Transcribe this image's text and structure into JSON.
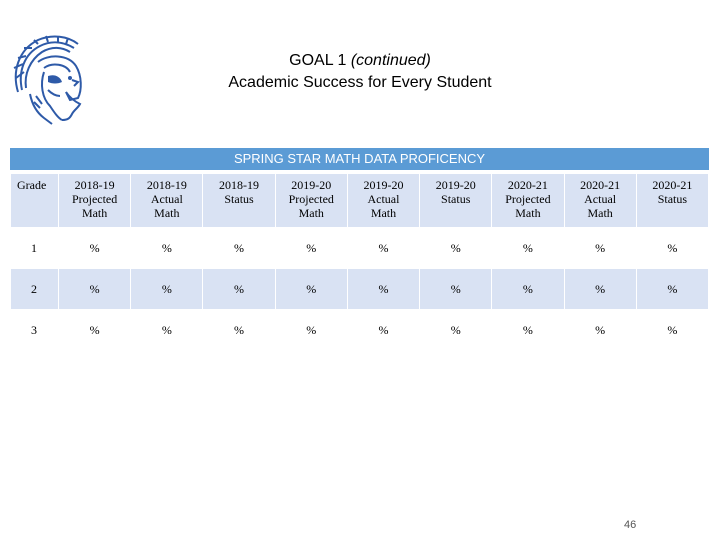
{
  "title": {
    "goal": "GOAL 1",
    "continued": "(continued)",
    "subtitle": "Academic Success for Every Student"
  },
  "table": {
    "banner": "SPRING STAR MATH DATA PROFICENCY",
    "headers": [
      [
        "Grade"
      ],
      [
        "2018-19",
        "Projected",
        "Math"
      ],
      [
        "2018-19",
        "Actual",
        "Math"
      ],
      [
        "2018-19",
        "Status"
      ],
      [
        "2019-20",
        "Projected",
        "Math"
      ],
      [
        "2019-20",
        "Actual",
        "Math"
      ],
      [
        "2019-20",
        "Status"
      ],
      [
        "2020-21",
        "Projected",
        "Math"
      ],
      [
        "2020-21",
        "Actual",
        "Math"
      ],
      [
        "2020-21",
        "Status"
      ]
    ],
    "rows": [
      {
        "grade": "1",
        "cells": [
          "%",
          "%",
          "%",
          "%",
          "%",
          "%",
          "%",
          "%",
          "%"
        ]
      },
      {
        "grade": "2",
        "cells": [
          "%",
          "%",
          "%",
          "%",
          "%",
          "%",
          "%",
          "%",
          "%"
        ]
      },
      {
        "grade": "3",
        "cells": [
          "%",
          "%",
          "%",
          "%",
          "%",
          "%",
          "%",
          "%",
          "%"
        ]
      }
    ]
  },
  "page_number": "46",
  "colors": {
    "banner": "#5b9bd5",
    "band": "#d9e2f3",
    "logo": "#2e5aa8"
  },
  "logo_icon": "spartan-helmet-icon"
}
